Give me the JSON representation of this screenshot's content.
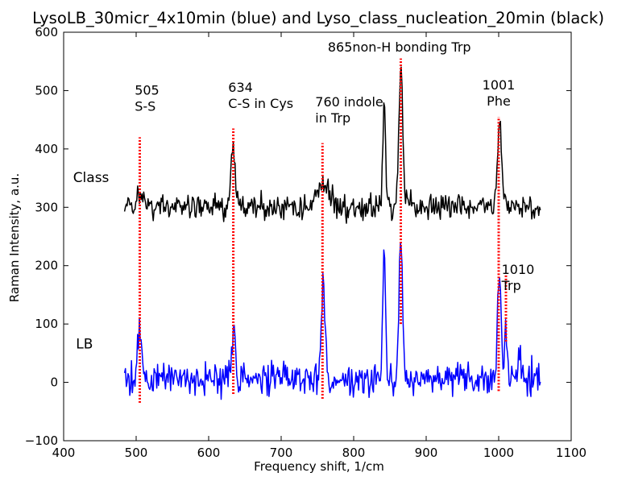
{
  "chart_data": {
    "type": "line",
    "title": "LysoLB_30micr_4x10min (blue) and Lyso_class_nucleation_20min (black)",
    "xlabel": "Frequency shift, 1/cm",
    "ylabel": "Raman Intensity, a.u.",
    "xlim": [
      400,
      1100
    ],
    "ylim": [
      -100,
      600
    ],
    "x_ticks": [
      400,
      500,
      600,
      700,
      800,
      900,
      1000,
      1100
    ],
    "y_ticks": [
      -100,
      0,
      100,
      200,
      300,
      400,
      500,
      600
    ],
    "grid": false,
    "x_range": [
      484,
      1058
    ],
    "series": [
      {
        "color": "#000000",
        "baseline": 300,
        "noise_amplitude": 20,
        "peaks": [
          {
            "x": 505,
            "height": 30,
            "width": 3
          },
          {
            "x": 634,
            "height": 105,
            "width": 3
          },
          {
            "x": 758,
            "height": 40,
            "width": 9
          },
          {
            "x": 842,
            "height": 175,
            "width": 2
          },
          {
            "x": 865,
            "height": 250,
            "width": 2.5
          },
          {
            "x": 1001,
            "height": 145,
            "width": 3
          }
        ]
      },
      {
        "color": "#0000ff",
        "baseline": 5,
        "noise_amplitude": 25,
        "peaks": [
          {
            "x": 505,
            "height": 85,
            "width": 3
          },
          {
            "x": 634,
            "height": 85,
            "width": 2.5
          },
          {
            "x": 758,
            "height": 160,
            "width": 3
          },
          {
            "x": 842,
            "height": 215,
            "width": 2
          },
          {
            "x": 865,
            "height": 245,
            "width": 2.5
          },
          {
            "x": 1001,
            "height": 190,
            "width": 2.5
          },
          {
            "x": 1010,
            "height": 80,
            "width": 2
          },
          {
            "x": 1028,
            "height": 55,
            "width": 1.5
          }
        ]
      }
    ],
    "reference_lines": [
      {
        "x": 505,
        "y_min": -35,
        "y_max": 420,
        "color": "#ff0000"
      },
      {
        "x": 634,
        "y_min": -20,
        "y_max": 435,
        "color": "#ff0000"
      },
      {
        "x": 757,
        "y_min": -28,
        "y_max": 410,
        "color": "#ff0000"
      },
      {
        "x": 865,
        "y_min": 100,
        "y_max": 555,
        "color": "#ff0000"
      },
      {
        "x": 1000,
        "y_min": -15,
        "y_max": 455,
        "color": "#ff0000"
      },
      {
        "x": 1010,
        "y_min": 70,
        "y_max": 185,
        "color": "#ff0000"
      }
    ],
    "annotations": [
      {
        "lines": [
          "505",
          "S-S"
        ],
        "x": 498,
        "y": 493,
        "anchor": "start"
      },
      {
        "lines": [
          "634",
          "C-S in Cys"
        ],
        "x": 627,
        "y": 498,
        "anchor": "start"
      },
      {
        "lines": [
          "760 indole",
          "in Trp"
        ],
        "x": 747,
        "y": 473,
        "anchor": "start"
      },
      {
        "lines": [
          "865non-H bonding Trp"
        ],
        "x": 863,
        "y": 567,
        "anchor": "middle"
      },
      {
        "lines": [
          "1001",
          "Phe"
        ],
        "x": 1000,
        "y": 502,
        "anchor": "middle"
      },
      {
        "lines": [
          "1010",
          "Trp"
        ],
        "x": 1004,
        "y": 186,
        "anchor": "start"
      }
    ],
    "series_labels": [
      {
        "text": "Class",
        "x": 413,
        "y": 343
      },
      {
        "text": "LB",
        "x": 417,
        "y": 58
      }
    ]
  }
}
